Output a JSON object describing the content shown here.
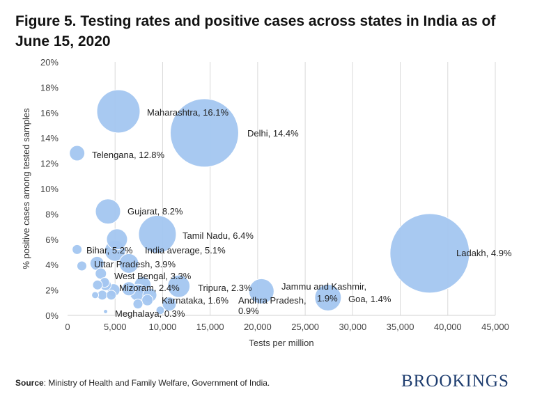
{
  "title": "Figure 5. Testing rates and positive cases across states in India as of June 15, 2020",
  "source_label": "Source",
  "source_text": ": Ministry of Health and Family Welfare, Government of India.",
  "logo_text": "BROOKINGS",
  "chart_data": {
    "type": "scatter",
    "subtype": "bubble",
    "xlabel": "Tests per million",
    "ylabel": "% positive cases among tested samples",
    "xlim": [
      0,
      45000
    ],
    "ylim": [
      0,
      20
    ],
    "x_ticks": [
      "0",
      "5,000",
      "10,000",
      "15,000",
      "20,000",
      "25,000",
      "30,000",
      "35,000",
      "40,000",
      "45,000"
    ],
    "y_ticks": [
      "0%",
      "2%",
      "4%",
      "6%",
      "8%",
      "10%",
      "12%",
      "14%",
      "16%",
      "18%",
      "20%"
    ],
    "grid": "vertical",
    "bubble_color": "#a3c6f0",
    "points": [
      {
        "label": "Maharashtra, 16.1%",
        "x": 5350,
        "y": 16.1,
        "size": 961
      },
      {
        "label": "Delhi, 14.4%",
        "x": 14400,
        "y": 14.4,
        "size": 2401
      },
      {
        "label": "Telengana, 12.8%",
        "x": 1000,
        "y": 12.8,
        "size": 121
      },
      {
        "label": "Gujarat, 8.2%",
        "x": 4250,
        "y": 8.2,
        "size": 324
      },
      {
        "label": "Tamil Nadu, 6.4%",
        "x": 9450,
        "y": 6.4,
        "size": 729
      },
      {
        "label": "Bihar, 5.2%",
        "x": 1000,
        "y": 5.2,
        "size": 49
      },
      {
        "label": "India average, 5.1%",
        "x": 5000,
        "y": 5.1,
        "size": 225
      },
      {
        "label": "Ladakh, 4.9%",
        "x": 38100,
        "y": 4.9,
        "size": 3249
      },
      {
        "label": "Uttar Pradesh, 3.9%",
        "x": 1500,
        "y": 3.9,
        "size": 49
      },
      {
        "label": "West Bengal, 3.3%",
        "x": 3500,
        "y": 3.3,
        "size": 64
      },
      {
        "label": "Mizoram, 2.4%",
        "x": 4000,
        "y": 2.4,
        "size": 64
      },
      {
        "label": "Tripura, 2.3%",
        "x": 11700,
        "y": 2.3,
        "size": 256
      },
      {
        "label": "Jammu and Kashmir, 1.9%",
        "x": 20400,
        "y": 1.9,
        "size": 324
      },
      {
        "label": "Goa, 1.4%",
        "x": 27400,
        "y": 1.4,
        "size": 361
      },
      {
        "label": "Karnataka, 1.6%",
        "x": 8650,
        "y": 1.6,
        "size": 100
      },
      {
        "label": "Andhra Pradesh, 0.9%",
        "x": 10700,
        "y": 0.9,
        "size": 100
      },
      {
        "label": "Meghalaya, 0.3%",
        "x": 4000,
        "y": 0.3,
        "size": 9
      },
      {
        "label": "",
        "x": 5200,
        "y": 6.0,
        "size": 225
      },
      {
        "label": "",
        "x": 3100,
        "y": 4.1,
        "size": 100
      },
      {
        "label": "",
        "x": 6450,
        "y": 4.1,
        "size": 196
      },
      {
        "label": "",
        "x": 3900,
        "y": 2.6,
        "size": 49
      },
      {
        "label": "",
        "x": 3150,
        "y": 2.4,
        "size": 49
      },
      {
        "label": "",
        "x": 2900,
        "y": 1.6,
        "size": 25
      },
      {
        "label": "",
        "x": 3650,
        "y": 1.6,
        "size": 49
      },
      {
        "label": "",
        "x": 4600,
        "y": 1.6,
        "size": 49
      },
      {
        "label": "",
        "x": 4850,
        "y": 2.0,
        "size": 81
      },
      {
        "label": "",
        "x": 6450,
        "y": 2.1,
        "size": 100
      },
      {
        "label": "",
        "x": 7900,
        "y": 2.4,
        "size": 144
      },
      {
        "label": "",
        "x": 7400,
        "y": 1.8,
        "size": 144
      },
      {
        "label": "",
        "x": 8400,
        "y": 1.2,
        "size": 64
      },
      {
        "label": "",
        "x": 7400,
        "y": 0.9,
        "size": 49
      },
      {
        "label": "",
        "x": 9750,
        "y": 0.4,
        "size": 36
      }
    ]
  }
}
